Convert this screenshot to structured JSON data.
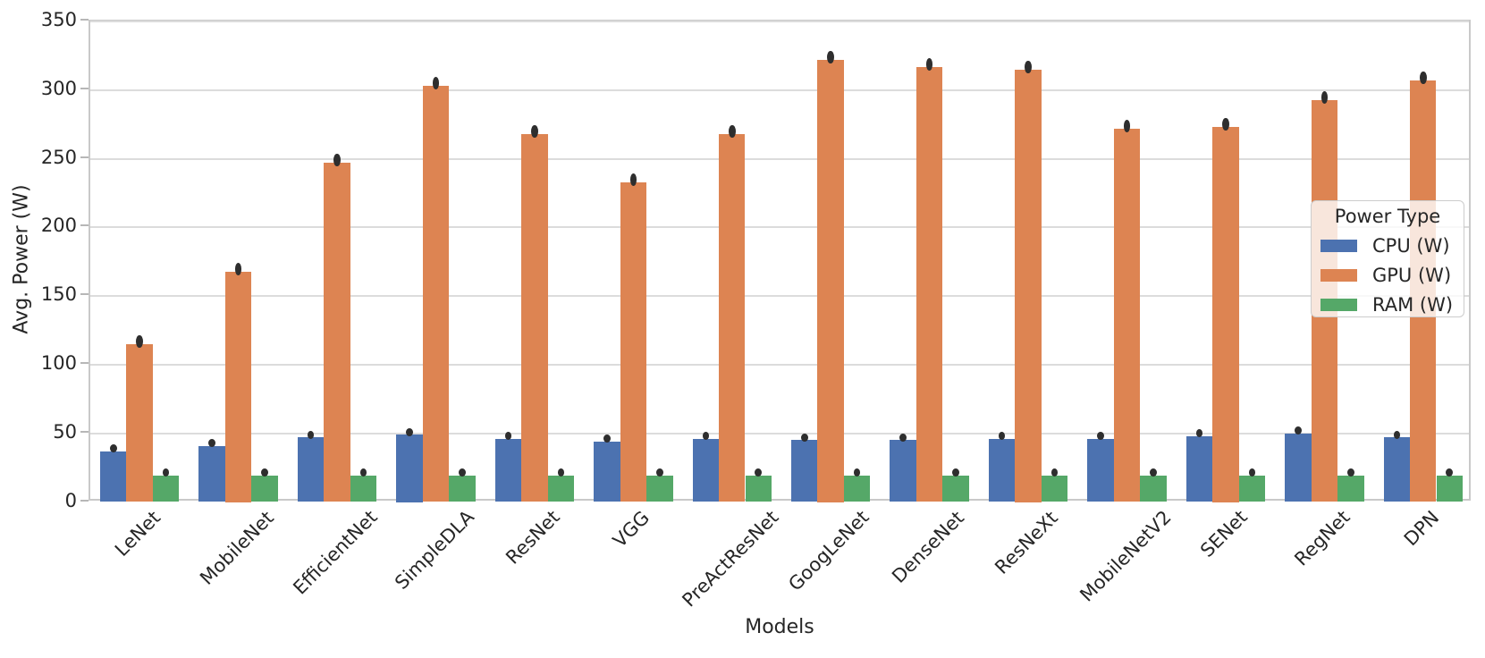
{
  "chart_data": {
    "type": "bar",
    "title": "",
    "xlabel": "Models",
    "ylabel": "Avg. Power (W)",
    "categories": [
      "LeNet",
      "MobileNet",
      "EfficientNet",
      "SimpleDLA",
      "ResNet",
      "VGG",
      "PreActResNet",
      "GoogLeNet",
      "DenseNet",
      "ResNeXt",
      "MobileNetV2",
      "SENet",
      "RegNet",
      "DPN"
    ],
    "series": [
      {
        "name": "CPU (W)",
        "color": "#4C72B0",
        "values": [
          37,
          41,
          47,
          49,
          46,
          44,
          46,
          45,
          45,
          46,
          46,
          48,
          50,
          47
        ]
      },
      {
        "name": "GPU (W)",
        "color": "#DD8452",
        "values": [
          115,
          168,
          247,
          303,
          268,
          233,
          268,
          322,
          317,
          315,
          272,
          273,
          293,
          307
        ]
      },
      {
        "name": "RAM (W)",
        "color": "#55A868",
        "values": [
          19.5,
          19.5,
          19.5,
          19.5,
          19.5,
          19.5,
          19.5,
          19.5,
          19.5,
          19.5,
          19.5,
          19.5,
          19.5,
          19.5
        ]
      }
    ],
    "ylim": [
      0,
      350
    ],
    "yticks": [
      0,
      50,
      100,
      150,
      200,
      250,
      300,
      350
    ],
    "grid": true,
    "legend_title": "Power Type",
    "legend_position": "center right",
    "error_markers": true,
    "error_marker_color": "#2e2e2e",
    "background_color": "#ffffff",
    "gridline_color": "#dcdcdc"
  }
}
